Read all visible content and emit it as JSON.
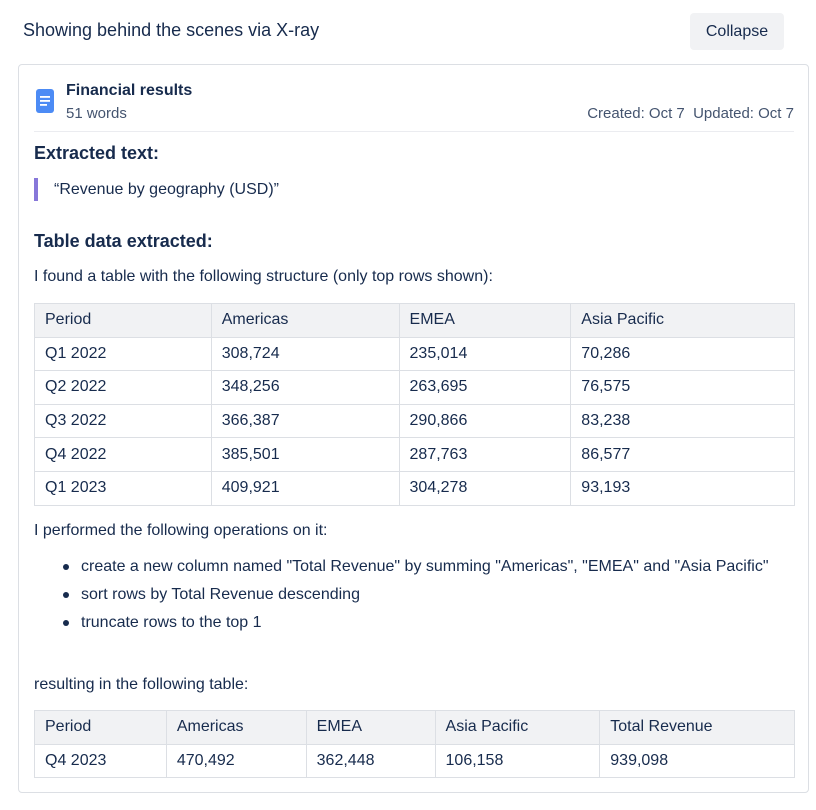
{
  "header": {
    "title": "Showing behind the scenes via X-ray",
    "collapse_label": "Collapse"
  },
  "document": {
    "icon": "document-icon",
    "title": "Financial results",
    "word_count": "51 words",
    "dates": "Created: Oct 7  Updated: Oct 7"
  },
  "extracted_text": {
    "heading": "Extracted text:",
    "quote": "“Revenue by geography (USD)”"
  },
  "table_data": {
    "heading": "Table data extracted:",
    "intro": "I found a table with the following structure (only top rows shown):",
    "columns": [
      "Period",
      "Americas",
      "EMEA",
      "Asia Pacific"
    ],
    "rows": [
      [
        "Q1 2022",
        "308,724",
        "235,014",
        "70,286"
      ],
      [
        "Q2 2022",
        "348,256",
        "263,695",
        "76,575"
      ],
      [
        "Q3 2022",
        "366,387",
        "290,866",
        "83,238"
      ],
      [
        "Q4 2022",
        "385,501",
        "287,763",
        "86,577"
      ],
      [
        "Q1 2023",
        "409,921",
        "304,278",
        "93,193"
      ]
    ]
  },
  "operations": {
    "intro": "I performed the following operations on it:",
    "items": [
      "create a new column named \"Total Revenue\" by summing \"Americas\", \"EMEA\" and \"Asia Pacific\"",
      "sort rows by Total Revenue descending",
      "truncate rows to the top 1"
    ]
  },
  "result": {
    "intro": "resulting in the following table:",
    "columns": [
      "Period",
      "Americas",
      "EMEA",
      "Asia Pacific",
      "Total Revenue"
    ],
    "rows": [
      [
        "Q4 2023",
        "470,492",
        "362,448",
        "106,158",
        "939,098"
      ]
    ]
  },
  "colors": {
    "text": "#172b4d",
    "subtle_text": "#44546f",
    "icon_blue": "#4c8bf5",
    "quote_bar": "#8777d9",
    "table_header_bg": "#f1f2f4",
    "border": "#dcdfe4"
  }
}
